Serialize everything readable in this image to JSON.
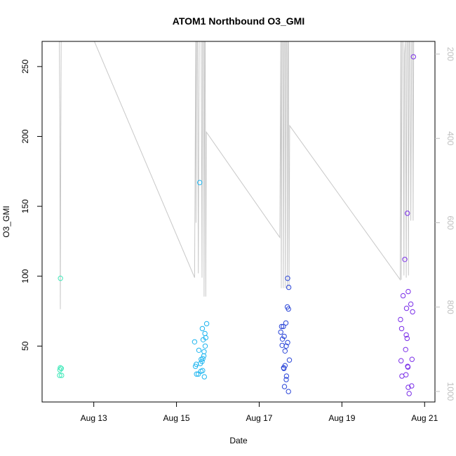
{
  "chart_data": {
    "type": "scatter",
    "title": "ATOM1 Northbound O3_GMI",
    "xlabel": "Date",
    "ylabel": "O3_GMI",
    "xlim": [
      "2016-08-11T18:00",
      "2016-08-21T06:00"
    ],
    "ylim": [
      10,
      268
    ],
    "x_ticks": [
      {
        "label": "Aug 13",
        "value": "2016-08-13T00:00"
      },
      {
        "label": "Aug 15",
        "value": "2016-08-15T00:00"
      },
      {
        "label": "Aug 17",
        "value": "2016-08-17T00:00"
      },
      {
        "label": "Aug 19",
        "value": "2016-08-19T00:00"
      },
      {
        "label": "Aug 21",
        "value": "2016-08-21T00:00"
      }
    ],
    "y_ticks": [
      50,
      100,
      150,
      200,
      250
    ],
    "y2_ticks": [
      200,
      400,
      600,
      800,
      1000
    ],
    "y2lim": [
      1025,
      170
    ],
    "y2_reversed": true,
    "grid": false,
    "legend": "none",
    "points": [
      {
        "x": "2016-08-12T04:40",
        "y": 98.5,
        "color": "#3de8b8"
      },
      {
        "x": "2016-08-12T04:20",
        "y": 33,
        "color": "#3de8b8"
      },
      {
        "x": "2016-08-12T04:35",
        "y": 34.5,
        "color": "#3de8b8"
      },
      {
        "x": "2016-08-12T05:10",
        "y": 34,
        "color": "#3de8b8"
      },
      {
        "x": "2016-08-12T04:10",
        "y": 29,
        "color": "#3de8b8"
      },
      {
        "x": "2016-08-12T05:20",
        "y": 29,
        "color": "#3de8b8"
      },
      {
        "x": "2016-08-15T13:30",
        "y": 167,
        "color": "#1cb5f0"
      },
      {
        "x": "2016-08-15T17:30",
        "y": 66,
        "color": "#1cb5f0"
      },
      {
        "x": "2016-08-15T15:00",
        "y": 62.5,
        "color": "#1cb5f0"
      },
      {
        "x": "2016-08-15T16:30",
        "y": 59,
        "color": "#1cb5f0"
      },
      {
        "x": "2016-08-15T17:00",
        "y": 56,
        "color": "#1cb5f0"
      },
      {
        "x": "2016-08-15T15:30",
        "y": 54.5,
        "color": "#1cb5f0"
      },
      {
        "x": "2016-08-15T10:30",
        "y": 53,
        "color": "#1cb5f0"
      },
      {
        "x": "2016-08-15T16:40",
        "y": 50,
        "color": "#1cb5f0"
      },
      {
        "x": "2016-08-15T13:00",
        "y": 47,
        "color": "#1cb5f0"
      },
      {
        "x": "2016-08-15T16:00",
        "y": 46,
        "color": "#1cb5f0"
      },
      {
        "x": "2016-08-15T15:50",
        "y": 43,
        "color": "#1cb5f0"
      },
      {
        "x": "2016-08-15T15:20",
        "y": 41,
        "color": "#1cb5f0"
      },
      {
        "x": "2016-08-15T14:20",
        "y": 40.5,
        "color": "#1cb5f0"
      },
      {
        "x": "2016-08-15T14:50",
        "y": 39,
        "color": "#1cb5f0"
      },
      {
        "x": "2016-08-15T13:50",
        "y": 37.5,
        "color": "#1cb5f0"
      },
      {
        "x": "2016-08-15T11:30",
        "y": 37,
        "color": "#1cb5f0"
      },
      {
        "x": "2016-08-15T11:00",
        "y": 35.5,
        "color": "#1cb5f0"
      },
      {
        "x": "2016-08-15T14:10",
        "y": 32,
        "color": "#1cb5f0"
      },
      {
        "x": "2016-08-15T15:10",
        "y": 32.5,
        "color": "#1cb5f0"
      },
      {
        "x": "2016-08-15T11:40",
        "y": 30,
        "color": "#1cb5f0"
      },
      {
        "x": "2016-08-15T12:40",
        "y": 30,
        "color": "#1cb5f0"
      },
      {
        "x": "2016-08-15T16:10",
        "y": 28,
        "color": "#1cb5f0"
      },
      {
        "x": "2016-08-17T13:00",
        "y": 64,
        "color": "#2a45d8"
      },
      {
        "x": "2016-08-17T14:00",
        "y": 64,
        "color": "#2a45d8"
      },
      {
        "x": "2016-08-17T15:30",
        "y": 66.5,
        "color": "#2a45d8"
      },
      {
        "x": "2016-08-17T12:30",
        "y": 60,
        "color": "#2a45d8"
      },
      {
        "x": "2016-08-17T14:30",
        "y": 57,
        "color": "#2a45d8"
      },
      {
        "x": "2016-08-17T13:30",
        "y": 55,
        "color": "#2a45d8"
      },
      {
        "x": "2016-08-17T16:30",
        "y": 52.5,
        "color": "#2a45d8"
      },
      {
        "x": "2016-08-17T13:20",
        "y": 50.5,
        "color": "#2a45d8"
      },
      {
        "x": "2016-08-17T15:40",
        "y": 50,
        "color": "#2a45d8"
      },
      {
        "x": "2016-08-17T15:00",
        "y": 46.5,
        "color": "#2a45d8"
      },
      {
        "x": "2016-08-17T17:30",
        "y": 40,
        "color": "#2a45d8"
      },
      {
        "x": "2016-08-17T15:00",
        "y": 36,
        "color": "#2a45d8"
      },
      {
        "x": "2016-08-17T14:10",
        "y": 34.5,
        "color": "#2a45d8"
      },
      {
        "x": "2016-08-17T14:20",
        "y": 34,
        "color": "#2a45d8"
      },
      {
        "x": "2016-08-17T15:50",
        "y": 28.5,
        "color": "#2a45d8"
      },
      {
        "x": "2016-08-17T15:40",
        "y": 26,
        "color": "#2a45d8"
      },
      {
        "x": "2016-08-17T14:40",
        "y": 21,
        "color": "#2a45d8"
      },
      {
        "x": "2016-08-17T17:00",
        "y": 17.5,
        "color": "#2a45d8"
      },
      {
        "x": "2016-08-17T16:30",
        "y": 98.5,
        "color": "#2a45d8"
      },
      {
        "x": "2016-08-17T17:10",
        "y": 92,
        "color": "#2a45d8"
      },
      {
        "x": "2016-08-17T16:20",
        "y": 78,
        "color": "#2a45d8"
      },
      {
        "x": "2016-08-17T17:00",
        "y": 76.5,
        "color": "#2a45d8"
      },
      {
        "x": "2016-08-20T17:30",
        "y": 257,
        "color": "#7a2ee8"
      },
      {
        "x": "2016-08-20T14:00",
        "y": 145,
        "color": "#7a2ee8"
      },
      {
        "x": "2016-08-20T12:30",
        "y": 112,
        "color": "#7a2ee8"
      },
      {
        "x": "2016-08-20T14:30",
        "y": 89,
        "color": "#7a2ee8"
      },
      {
        "x": "2016-08-20T11:30",
        "y": 86,
        "color": "#7a2ee8"
      },
      {
        "x": "2016-08-20T16:00",
        "y": 80,
        "color": "#7a2ee8"
      },
      {
        "x": "2016-08-20T13:30",
        "y": 77,
        "color": "#7a2ee8"
      },
      {
        "x": "2016-08-20T17:00",
        "y": 74.5,
        "color": "#7a2ee8"
      },
      {
        "x": "2016-08-20T10:00",
        "y": 69,
        "color": "#7a2ee8"
      },
      {
        "x": "2016-08-20T10:40",
        "y": 62.5,
        "color": "#7a2ee8"
      },
      {
        "x": "2016-08-20T13:20",
        "y": 58,
        "color": "#7a2ee8"
      },
      {
        "x": "2016-08-20T13:50",
        "y": 55.5,
        "color": "#7a2ee8"
      },
      {
        "x": "2016-08-20T13:00",
        "y": 47.5,
        "color": "#7a2ee8"
      },
      {
        "x": "2016-08-20T16:40",
        "y": 40.5,
        "color": "#7a2ee8"
      },
      {
        "x": "2016-08-20T10:20",
        "y": 39.5,
        "color": "#7a2ee8"
      },
      {
        "x": "2016-08-20T14:10",
        "y": 35.5,
        "color": "#7a2ee8"
      },
      {
        "x": "2016-08-20T14:20",
        "y": 35,
        "color": "#7a2ee8"
      },
      {
        "x": "2016-08-20T10:50",
        "y": 28.5,
        "color": "#7a2ee8"
      },
      {
        "x": "2016-08-20T13:10",
        "y": 29.5,
        "color": "#7a2ee8"
      },
      {
        "x": "2016-08-20T14:30",
        "y": 20.5,
        "color": "#7a2ee8"
      },
      {
        "x": "2016-08-20T16:30",
        "y": 21.5,
        "color": "#7a2ee8"
      },
      {
        "x": "2016-08-20T15:00",
        "y": 16,
        "color": "#7a2ee8"
      }
    ],
    "pressure_line_color": "#c8c8c8",
    "pressure_series": [
      [
        "2016-08-12T04:00",
        170
      ],
      [
        "2016-08-12T04:15",
        330
      ],
      [
        "2016-08-12T04:35",
        805
      ],
      [
        "2016-08-12T04:50",
        440
      ],
      [
        "2016-08-12T05:05",
        170
      ],
      [
        "2016-08-12T05:15",
        170
      ],
      [
        "2016-08-13T00:20",
        170
      ],
      [
        "2016-08-15T10:30",
        730
      ],
      [
        "2016-08-15T11:10",
        170
      ],
      [
        "2016-08-15T11:20",
        600
      ],
      [
        "2016-08-15T11:40",
        170
      ],
      [
        "2016-08-15T12:10",
        170
      ],
      [
        "2016-08-15T12:40",
        720
      ],
      [
        "2016-08-15T13:10",
        170
      ],
      [
        "2016-08-15T14:20",
        170
      ],
      [
        "2016-08-15T14:50",
        730
      ],
      [
        "2016-08-15T15:10",
        170
      ],
      [
        "2016-08-15T15:40",
        170
      ],
      [
        "2016-08-15T16:00",
        775
      ],
      [
        "2016-08-15T16:20",
        170
      ],
      [
        "2016-08-15T16:40",
        170
      ],
      [
        "2016-08-15T17:00",
        775
      ],
      [
        "2016-08-15T17:20",
        385
      ],
      [
        "2016-08-17T12:00",
        635
      ],
      [
        "2016-08-17T12:30",
        170
      ],
      [
        "2016-08-17T12:50",
        755
      ],
      [
        "2016-08-17T13:10",
        170
      ],
      [
        "2016-08-17T13:40",
        170
      ],
      [
        "2016-08-17T14:00",
        755
      ],
      [
        "2016-08-17T14:20",
        170
      ],
      [
        "2016-08-17T14:50",
        170
      ],
      [
        "2016-08-17T15:10",
        755
      ],
      [
        "2016-08-17T15:30",
        170
      ],
      [
        "2016-08-17T16:00",
        170
      ],
      [
        "2016-08-17T16:20",
        755
      ],
      [
        "2016-08-17T16:40",
        170
      ],
      [
        "2016-08-17T17:00",
        170
      ],
      [
        "2016-08-17T17:20",
        755
      ],
      [
        "2016-08-17T17:40",
        370
      ],
      [
        "2016-08-20T09:50",
        735
      ],
      [
        "2016-08-20T10:10",
        170
      ],
      [
        "2016-08-20T10:30",
        735
      ],
      [
        "2016-08-20T10:50",
        170
      ],
      [
        "2016-08-20T11:30",
        170
      ],
      [
        "2016-08-20T12:00",
        725
      ],
      [
        "2016-08-20T12:20",
        200
      ],
      [
        "2016-08-20T12:50",
        170
      ],
      [
        "2016-08-20T13:20",
        730
      ],
      [
        "2016-08-20T13:40",
        170
      ],
      [
        "2016-08-20T14:20",
        170
      ],
      [
        "2016-08-20T14:40",
        725
      ],
      [
        "2016-08-20T15:00",
        170
      ],
      [
        "2016-08-20T15:30",
        170
      ],
      [
        "2016-08-20T16:00",
        595
      ],
      [
        "2016-08-20T16:30",
        170
      ],
      [
        "2016-08-20T17:00",
        170
      ],
      [
        "2016-08-20T17:20",
        595
      ],
      [
        "2016-08-20T17:40",
        170
      ]
    ]
  }
}
